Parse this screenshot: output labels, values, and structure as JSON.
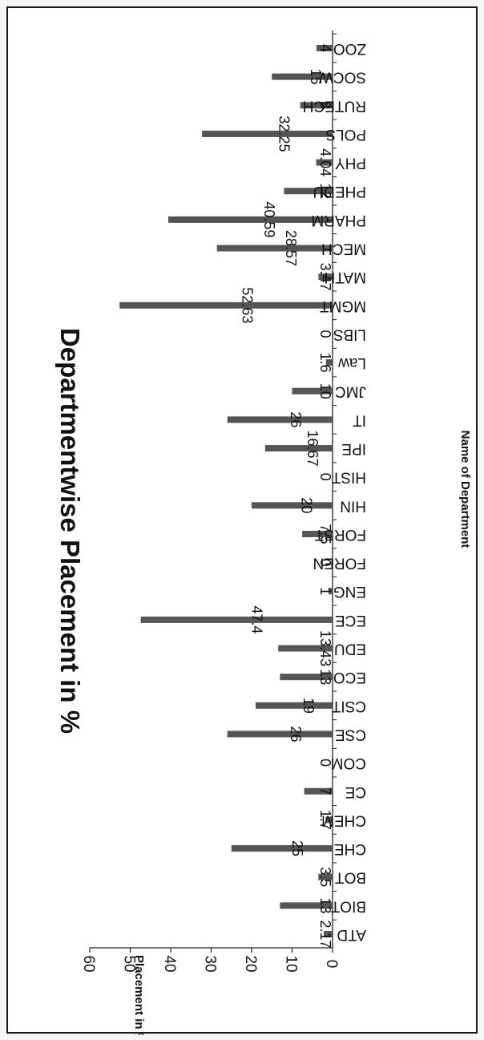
{
  "chart_data": {
    "type": "bar",
    "title": "Departmentwise Placement in %",
    "xlabel": "Name of Department",
    "ylabel": "Placement in %",
    "ylim": [
      0,
      60
    ],
    "yticks": [
      0,
      10,
      20,
      30,
      40,
      50,
      60
    ],
    "categories": [
      "ATD",
      "BIOT",
      "BOT",
      "CHE",
      "CHEM",
      "CE",
      "COM",
      "CSE",
      "CSIT",
      "ECO",
      "EDU",
      "ECE",
      "ENG",
      "FOREN",
      "FORST",
      "HIN",
      "HIST",
      "IPE",
      "IT",
      "JMC",
      "Law",
      "LIBS",
      "MGMT",
      "MATH",
      "MECH",
      "PHARM",
      "PHEDU",
      "PHY",
      "POLS",
      "RUTECH",
      "SOCW",
      "ZOO"
    ],
    "values": [
      2.17,
      13,
      3.5,
      25,
      1.7,
      7,
      0,
      26,
      19,
      13,
      13.43,
      47.4,
      1,
      0,
      7.5,
      20,
      0,
      16.67,
      26,
      10,
      1.6,
      0,
      52.63,
      3.47,
      28.57,
      40.59,
      12,
      4.04,
      32.25,
      8,
      15,
      4
    ],
    "data_labels": [
      "2.17",
      "13",
      "3.5",
      "25",
      "1.7",
      "7",
      "0",
      "26",
      "19",
      "13",
      "13.43",
      "47.4",
      "1",
      "0",
      "7.5",
      "20",
      "0",
      "16.67",
      "26",
      "10",
      "1.6",
      "0",
      "52.63",
      "3.47",
      "28.57",
      "40.59",
      "12",
      "4.04",
      "32.25",
      "8",
      "15",
      "4"
    ],
    "orientation": "rotated-90-clockwise",
    "colors": {
      "bar": "#555555",
      "axis": "#222222",
      "text": "#111111"
    },
    "grid": false,
    "legend": "none"
  }
}
